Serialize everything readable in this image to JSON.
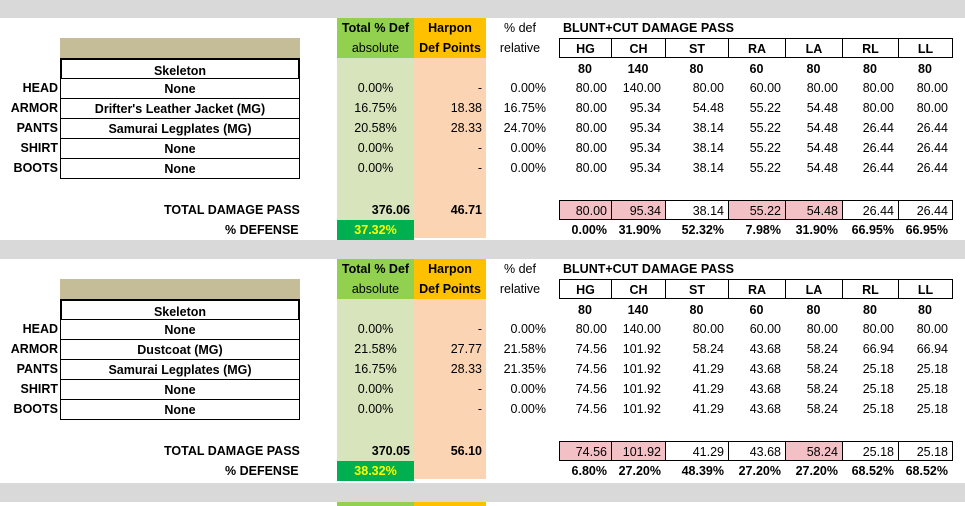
{
  "blocks": [
    {
      "header": {
        "total_def": "Total % Def",
        "absolute": "absolute",
        "harpon": "Harpon",
        "def_points": "Def Points",
        "pct_def": "% def",
        "relative": "relative",
        "damage_title": "BLUNT+CUT DAMAGE PASS"
      },
      "parts": [
        "HG",
        "CH",
        "ST",
        "RA",
        "LA",
        "RL",
        "LL"
      ],
      "base": [
        "80",
        "140",
        "80",
        "60",
        "80",
        "80",
        "80"
      ],
      "race": "Skeleton",
      "rows": [
        {
          "slot": "HEAD",
          "item": "None",
          "abs": "0.00%",
          "harpon": "-",
          "rel": "0.00%",
          "vals": [
            "80.00",
            "140.00",
            "80.00",
            "60.00",
            "80.00",
            "80.00",
            "80.00"
          ]
        },
        {
          "slot": "ARMOR",
          "item": "Drifter's Leather Jacket (MG)",
          "abs": "16.75%",
          "harpon": "18.38",
          "rel": "16.75%",
          "vals": [
            "80.00",
            "95.34",
            "54.48",
            "55.22",
            "54.48",
            "80.00",
            "80.00"
          ]
        },
        {
          "slot": "PANTS",
          "item": "Samurai Legplates (MG)",
          "abs": "20.58%",
          "harpon": "28.33",
          "rel": "24.70%",
          "vals": [
            "80.00",
            "95.34",
            "38.14",
            "55.22",
            "54.48",
            "26.44",
            "26.44"
          ]
        },
        {
          "slot": "SHIRT",
          "item": "None",
          "abs": "0.00%",
          "harpon": "-",
          "rel": "0.00%",
          "vals": [
            "80.00",
            "95.34",
            "38.14",
            "55.22",
            "54.48",
            "26.44",
            "26.44"
          ]
        },
        {
          "slot": "BOOTS",
          "item": "None",
          "abs": "0.00%",
          "harpon": "-",
          "rel": "0.00%",
          "vals": [
            "80.00",
            "95.34",
            "38.14",
            "55.22",
            "54.48",
            "26.44",
            "26.44"
          ]
        }
      ],
      "total_label": "TOTAL DAMAGE PASS",
      "total_abs": "376.06",
      "total_harpon": "46.71",
      "totals": [
        "80.00",
        "95.34",
        "38.14",
        "55.22",
        "54.48",
        "26.44",
        "26.44"
      ],
      "totals_highlight": [
        true,
        true,
        false,
        true,
        true,
        false,
        false
      ],
      "defense_label": "% DEFENSE",
      "defense_pct": "37.32%",
      "defense_vals": [
        "0.00%",
        "31.90%",
        "52.32%",
        "7.98%",
        "31.90%",
        "66.95%",
        "66.95%"
      ]
    },
    {
      "header": {
        "total_def": "Total % Def",
        "absolute": "absolute",
        "harpon": "Harpon",
        "def_points": "Def Points",
        "pct_def": "% def",
        "relative": "relative",
        "damage_title": "BLUNT+CUT DAMAGE PASS"
      },
      "parts": [
        "HG",
        "CH",
        "ST",
        "RA",
        "LA",
        "RL",
        "LL"
      ],
      "base": [
        "80",
        "140",
        "80",
        "60",
        "80",
        "80",
        "80"
      ],
      "race": "Skeleton",
      "rows": [
        {
          "slot": "HEAD",
          "item": "None",
          "abs": "0.00%",
          "harpon": "-",
          "rel": "0.00%",
          "vals": [
            "80.00",
            "140.00",
            "80.00",
            "60.00",
            "80.00",
            "80.00",
            "80.00"
          ]
        },
        {
          "slot": "ARMOR",
          "item": "Dustcoat (MG)",
          "abs": "21.58%",
          "harpon": "27.77",
          "rel": "21.58%",
          "vals": [
            "74.56",
            "101.92",
            "58.24",
            "43.68",
            "58.24",
            "66.94",
            "66.94"
          ]
        },
        {
          "slot": "PANTS",
          "item": "Samurai Legplates (MG)",
          "abs": "16.75%",
          "harpon": "28.33",
          "rel": "21.35%",
          "vals": [
            "74.56",
            "101.92",
            "41.29",
            "43.68",
            "58.24",
            "25.18",
            "25.18"
          ]
        },
        {
          "slot": "SHIRT",
          "item": "None",
          "abs": "0.00%",
          "harpon": "-",
          "rel": "0.00%",
          "vals": [
            "74.56",
            "101.92",
            "41.29",
            "43.68",
            "58.24",
            "25.18",
            "25.18"
          ]
        },
        {
          "slot": "BOOTS",
          "item": "None",
          "abs": "0.00%",
          "harpon": "-",
          "rel": "0.00%",
          "vals": [
            "74.56",
            "101.92",
            "41.29",
            "43.68",
            "58.24",
            "25.18",
            "25.18"
          ]
        }
      ],
      "total_label": "TOTAL DAMAGE PASS",
      "total_abs": "370.05",
      "total_harpon": "56.10",
      "totals": [
        "74.56",
        "101.92",
        "41.29",
        "43.68",
        "58.24",
        "25.18",
        "25.18"
      ],
      "totals_highlight": [
        true,
        true,
        false,
        false,
        true,
        false,
        false
      ],
      "defense_label": "% DEFENSE",
      "defense_pct": "38.32%",
      "defense_vals": [
        "6.80%",
        "27.20%",
        "48.39%",
        "27.20%",
        "27.20%",
        "68.52%",
        "68.52%"
      ]
    }
  ],
  "colors": {
    "absolute_column": "#d8e4bc",
    "harpon_column": "#fbd4b4",
    "total_def_header": "#92d050",
    "harpon_header": "#ffc000",
    "defense_pct_cell": "#00b050",
    "highlight_pink": "#f2c0c5",
    "race_bar": "#c4bd97"
  }
}
